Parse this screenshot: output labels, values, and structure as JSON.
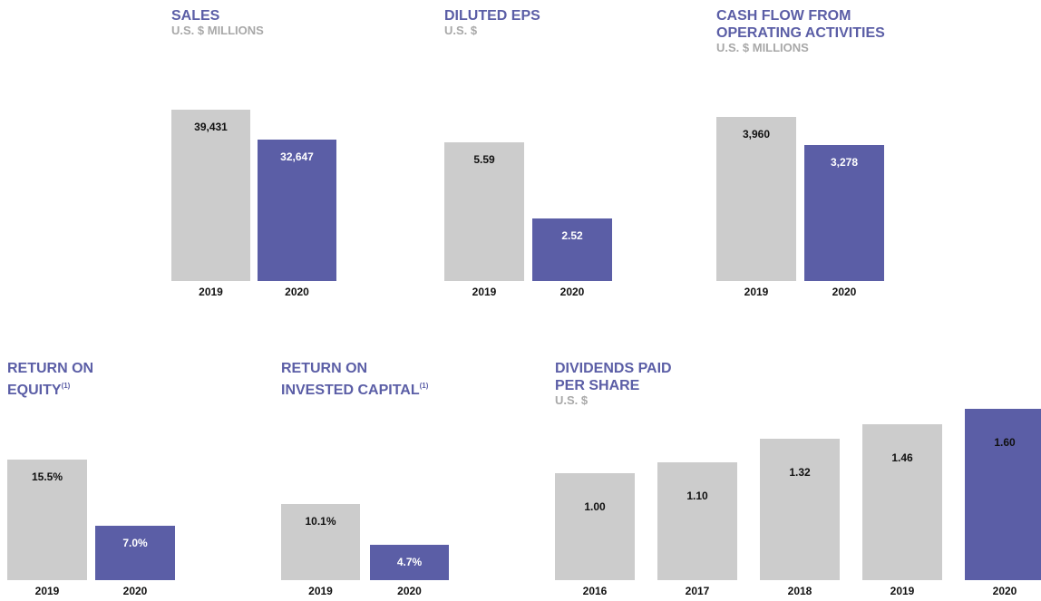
{
  "chart_data": [
    {
      "type": "bar",
      "title": [
        "SALES"
      ],
      "subtitle": "U.S. $ MILLIONS",
      "categories": [
        "2019",
        "2020"
      ],
      "values": [
        39431,
        32647
      ],
      "value_labels": [
        "39,431",
        "32,647"
      ],
      "colors": [
        "#cccccc",
        "#5b5ea6"
      ],
      "label_colors": [
        "#111111",
        "#ffffff"
      ]
    },
    {
      "type": "bar",
      "title": [
        "DILUTED EPS"
      ],
      "subtitle": "U.S. $",
      "categories": [
        "2019",
        "2020"
      ],
      "values": [
        5.59,
        2.52
      ],
      "colors": [
        "#cccccc",
        "#5b5ea6"
      ],
      "label_colors": [
        "#111111",
        "#ffffff"
      ]
    },
    {
      "type": "bar",
      "title": [
        "CASH FLOW FROM",
        "OPERATING ACTIVITIES"
      ],
      "subtitle": "U.S. $ MILLIONS",
      "categories": [
        "2019",
        "2020"
      ],
      "values": [
        3960,
        3278
      ],
      "value_labels": [
        "3,960",
        "3,278"
      ],
      "colors": [
        "#cccccc",
        "#5b5ea6"
      ],
      "label_colors": [
        "#111111",
        "#ffffff"
      ]
    },
    {
      "type": "bar",
      "title": [
        "RETURN ON",
        "EQUITY"
      ],
      "title_note": "(1)",
      "categories": [
        "2019",
        "2020"
      ],
      "values": [
        15.5,
        7.0
      ],
      "value_labels": [
        "15.5%",
        "7.0%"
      ],
      "colors": [
        "#cccccc",
        "#5b5ea6"
      ],
      "label_colors": [
        "#111111",
        "#ffffff"
      ]
    },
    {
      "type": "bar",
      "title": [
        "RETURN ON",
        "INVESTED CAPITAL"
      ],
      "title_note": "(1)",
      "categories": [
        "2019",
        "2020"
      ],
      "values": [
        10.1,
        4.7
      ],
      "value_labels": [
        "10.1%",
        "4.7%"
      ],
      "colors": [
        "#cccccc",
        "#5b5ea6"
      ],
      "label_colors": [
        "#111111",
        "#ffffff"
      ]
    },
    {
      "type": "bar",
      "title": [
        "DIVIDENDS PAID",
        "PER SHARE"
      ],
      "subtitle": "U.S. $",
      "categories": [
        "2016",
        "2017",
        "2018",
        "2019",
        "2020"
      ],
      "values": [
        1.0,
        1.1,
        1.32,
        1.46,
        1.6
      ],
      "value_labels": [
        "1.00",
        "1.10",
        "1.32",
        "1.46",
        "1.60"
      ],
      "colors": [
        "#cccccc",
        "#cccccc",
        "#cccccc",
        "#cccccc",
        "#5b5ea6"
      ],
      "label_colors": [
        "#111111",
        "#111111",
        "#111111",
        "#111111",
        "#111111"
      ]
    }
  ]
}
